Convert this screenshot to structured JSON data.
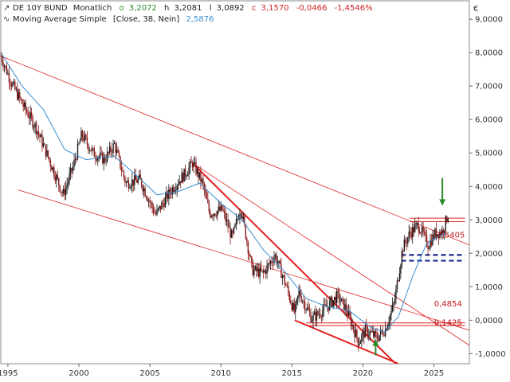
{
  "header": {
    "symbol": "DE 10Y BUND",
    "interval": "Monatlich",
    "o_label": "o",
    "o_value": "3,2072",
    "h_label": "h",
    "h_value": "3,2081",
    "l_label": "l",
    "l_value": "3,0892",
    "c_label": "c",
    "c_value": "3,1570",
    "change": "-0,0466",
    "change_pct": "-1,4546%",
    "indicator": "Moving Average Simple",
    "indicator_params": "[Close, 38, Nein]",
    "indicator_value": "2,5876",
    "currency": "€"
  },
  "colors": {
    "candle_up": "#1a1a1a",
    "candle_down": "#8b1a1a",
    "moving_average": "#3a8fd0",
    "trendline": "#e02020",
    "support_dash": "#1a2a8c",
    "arrow": "#2a8a2a",
    "change_text": "#d02020",
    "ma_label_text": "#3a8fd0"
  },
  "chart_data": {
    "type": "candlestick",
    "x_ticks": [
      "1995",
      "2000",
      "2005",
      "2010",
      "2015",
      "2020",
      "2025"
    ],
    "y_ticks": [
      "9,0000",
      "8,0000",
      "7,0000",
      "6,0000",
      "5,0000",
      "4,0000",
      "3,0000",
      "2,0000",
      "1,0000",
      "0,0000",
      "-1,0000"
    ],
    "xlim": [
      1994.5,
      2027.5
    ],
    "ylim": [
      -1.3,
      9.55
    ],
    "price_path": [
      [
        1994.5,
        7.9
      ],
      [
        1995.3,
        7.05
      ],
      [
        1996.1,
        6.4
      ],
      [
        1997.0,
        5.75
      ],
      [
        1998.0,
        4.7
      ],
      [
        1998.9,
        3.75
      ],
      [
        1999.6,
        4.6
      ],
      [
        2000.2,
        5.55
      ],
      [
        2001.0,
        5.0
      ],
      [
        2001.8,
        4.8
      ],
      [
        2002.5,
        5.25
      ],
      [
        2003.3,
        4.1
      ],
      [
        2004.3,
        4.2
      ],
      [
        2005.4,
        3.15
      ],
      [
        2006.6,
        3.95
      ],
      [
        2007.6,
        4.45
      ],
      [
        2008.0,
        4.7
      ],
      [
        2008.7,
        4.1
      ],
      [
        2009.2,
        3.2
      ],
      [
        2010.1,
        3.3
      ],
      [
        2010.8,
        2.45
      ],
      [
        2011.4,
        3.4
      ],
      [
        2012.2,
        1.5
      ],
      [
        2013.0,
        1.4
      ],
      [
        2013.8,
        1.95
      ],
      [
        2014.5,
        1.15
      ],
      [
        2015.2,
        0.2
      ],
      [
        2015.5,
        0.85
      ],
      [
        2016.4,
        0.05
      ],
      [
        2016.9,
        0.2
      ],
      [
        2017.7,
        0.5
      ],
      [
        2018.2,
        0.72
      ],
      [
        2018.8,
        0.35
      ],
      [
        2019.7,
        -0.65
      ],
      [
        2020.2,
        -0.3
      ],
      [
        2021.0,
        -0.52
      ],
      [
        2021.6,
        -0.25
      ],
      [
        2022.2,
        0.5
      ],
      [
        2022.8,
        2.15
      ],
      [
        2023.3,
        2.6
      ],
      [
        2023.9,
        2.85
      ],
      [
        2024.6,
        2.25
      ],
      [
        2025.1,
        2.6
      ],
      [
        2025.6,
        2.65
      ],
      [
        2026.0,
        3.157
      ]
    ],
    "moving_average": [
      [
        1994.5,
        8.0
      ],
      [
        1996.0,
        7.0
      ],
      [
        1997.5,
        6.3
      ],
      [
        1999.0,
        5.1
      ],
      [
        2000.5,
        4.8
      ],
      [
        2002.5,
        4.9
      ],
      [
        2004.0,
        4.35
      ],
      [
        2005.5,
        3.75
      ],
      [
        2007.0,
        3.85
      ],
      [
        2008.5,
        4.1
      ],
      [
        2010.0,
        3.5
      ],
      [
        2011.5,
        3.0
      ],
      [
        2013.0,
        2.1
      ],
      [
        2014.5,
        1.45
      ],
      [
        2016.0,
        0.65
      ],
      [
        2017.5,
        0.4
      ],
      [
        2019.0,
        0.3
      ],
      [
        2020.5,
        -0.2
      ],
      [
        2021.5,
        -0.35
      ],
      [
        2022.5,
        0.1
      ],
      [
        2023.5,
        1.3
      ],
      [
        2024.5,
        2.3
      ],
      [
        2025.5,
        2.55
      ],
      [
        2026.0,
        2.5876
      ]
    ],
    "trendlines": [
      {
        "from": [
          1994.5,
          7.9
        ],
        "to": [
          2027.5,
          2.25
        ],
        "width": 0.8
      },
      {
        "from": [
          1995.7,
          3.9
        ],
        "to": [
          2027.5,
          -0.3
        ],
        "width": 0.8
      },
      {
        "from": [
          2008.0,
          4.7
        ],
        "to": [
          2027.5,
          -0.75
        ],
        "width": 0.8
      },
      {
        "from": [
          2008.0,
          4.7
        ],
        "to": [
          2022.3,
          -1.3
        ],
        "width": 2.0
      },
      {
        "from": [
          2015.2,
          0.0
        ],
        "to": [
          2022.5,
          -1.3
        ],
        "width": 2.0
      }
    ],
    "horizontal_lines": [
      {
        "y": 3.05,
        "from": 2023.3,
        "to": 2027.2
      },
      {
        "y": 2.95,
        "from": 2023.3,
        "to": 2027.2
      },
      {
        "y": -0.08,
        "from": 2016.0,
        "to": 2027.2
      },
      {
        "y": -0.16,
        "from": 2016.0,
        "to": 2027.2
      }
    ],
    "dashed_lines": [
      {
        "y": 1.95,
        "from": 2022.7,
        "to": 2027.2
      },
      {
        "y": 1.78,
        "from": 2022.7,
        "to": 2027.2
      }
    ],
    "level_labels": [
      {
        "text": "2,5405",
        "x": 2026.2,
        "y": 2.5405
      },
      {
        "text": "0,4854",
        "x": 2026.0,
        "y": 0.4854
      },
      {
        "text": "0,1425",
        "x": 2026.0,
        "y": -0.08
      }
    ],
    "arrows": [
      {
        "direction": "down",
        "x": 2025.6,
        "from_y": 4.25,
        "to_y": 3.45
      },
      {
        "direction": "up",
        "x": 2020.9,
        "from_y": -1.05,
        "to_y": -0.6
      }
    ]
  }
}
